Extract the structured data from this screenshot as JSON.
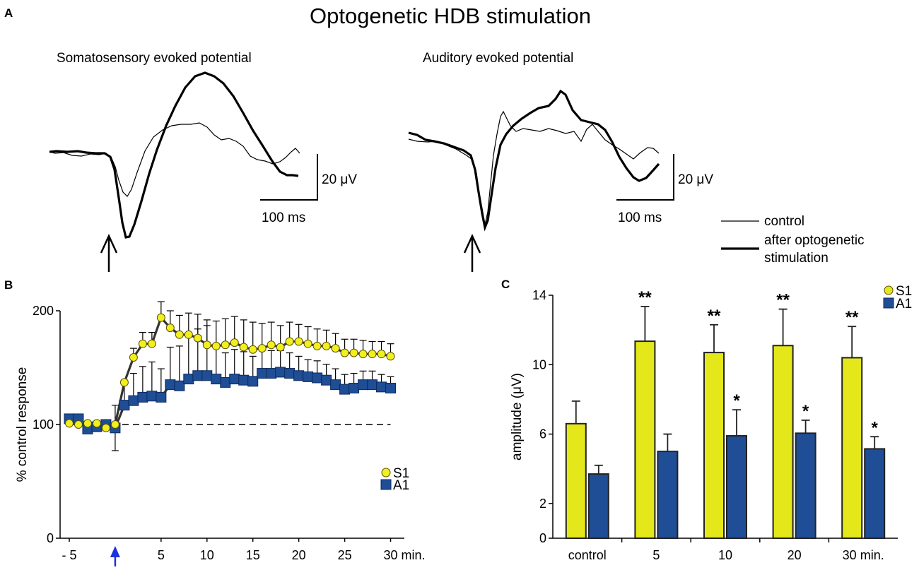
{
  "figure": {
    "title": "Optogenetic HDB stimulation",
    "panel_a": "A",
    "panel_b": "B",
    "panel_c": "C"
  },
  "panel_a": {
    "left_title": "Somatosensory evoked potential",
    "right_title": "Auditory evoked potential",
    "scale_amp": "20 μV",
    "scale_time": "100 ms",
    "legend_control": "control",
    "legend_after_line1": "after optogenetic",
    "legend_after_line2": "stimulation"
  },
  "chart_data": [
    {
      "type": "line",
      "panel": "B",
      "ylabel": "% control response",
      "ylim": [
        0,
        200
      ],
      "yticks": [
        "0",
        "100",
        "200"
      ],
      "xticks": [
        "- 5",
        "5",
        "10",
        "15",
        "20",
        "25",
        "30 min."
      ],
      "xlim": [
        -6,
        31.5
      ],
      "stimulation_marker_x": 0,
      "reference_line_y": 100,
      "legend": [
        "S1",
        "A1"
      ],
      "series": [
        {
          "name": "S1",
          "color": "#f2ef1e",
          "x": [
            -5,
            -4,
            -3,
            -2,
            -1,
            0,
            1,
            2,
            3,
            4,
            5,
            6,
            7,
            8,
            9,
            10,
            11,
            12,
            13,
            14,
            15,
            16,
            17,
            18,
            19,
            20,
            21,
            22,
            23,
            24,
            25,
            26,
            27,
            28,
            29,
            30
          ],
          "values": [
            101,
            100,
            101,
            101,
            97,
            100,
            137,
            159,
            171,
            171,
            194,
            185,
            179,
            179,
            176,
            170,
            169,
            170,
            172,
            168,
            166,
            167,
            170,
            168,
            173,
            173,
            171,
            169,
            169,
            167,
            163,
            163,
            162,
            162,
            162,
            160
          ],
          "error": [
            0,
            0,
            0,
            0,
            0,
            0,
            0,
            8,
            10,
            10,
            14,
            15,
            17,
            19,
            21,
            22,
            22,
            23,
            23,
            24,
            24,
            22,
            20,
            19,
            17,
            15,
            15,
            15,
            14,
            13,
            12,
            12,
            12,
            11,
            11,
            11
          ]
        },
        {
          "name": "A1",
          "color": "#1f4e96",
          "x": [
            -5,
            -4,
            -3,
            -2,
            -1,
            0,
            1,
            2,
            3,
            4,
            5,
            6,
            7,
            8,
            9,
            10,
            11,
            12,
            13,
            14,
            15,
            16,
            17,
            18,
            19,
            20,
            21,
            22,
            23,
            24,
            25,
            26,
            27,
            28,
            29,
            30
          ],
          "values": [
            105,
            105,
            96,
            98,
            100,
            97,
            117,
            121,
            124,
            125,
            124,
            135,
            134,
            140,
            143,
            143,
            140,
            137,
            140,
            139,
            138,
            145,
            145,
            146,
            145,
            143,
            142,
            141,
            139,
            135,
            131,
            132,
            135,
            135,
            133,
            132
          ],
          "error": [
            0,
            0,
            0,
            0,
            0,
            20,
            22,
            24,
            27,
            30,
            25,
            33,
            35,
            38,
            41,
            44,
            30,
            26,
            26,
            25,
            22,
            22,
            20,
            19,
            18,
            17,
            15,
            15,
            14,
            14,
            13,
            13,
            12,
            12,
            11,
            10
          ]
        }
      ]
    },
    {
      "type": "bar",
      "panel": "C",
      "ylabel": "amplitude (μV)",
      "ylim": [
        0,
        14
      ],
      "yticks": [
        "0",
        "2",
        "6",
        "10",
        "14"
      ],
      "categories": [
        "control",
        "5",
        "10",
        "20",
        "30 min."
      ],
      "legend": [
        "S1",
        "A1"
      ],
      "series": [
        {
          "name": "S1",
          "color": "#e4e71a",
          "values": [
            6.6,
            11.35,
            10.7,
            11.1,
            10.4
          ],
          "error": [
            1.3,
            2.0,
            1.6,
            2.1,
            1.8
          ],
          "significance": [
            "",
            "**",
            "**",
            "**",
            "**"
          ]
        },
        {
          "name": "A1",
          "color": "#1f4e96",
          "values": [
            3.7,
            5.0,
            5.9,
            6.05,
            5.15
          ],
          "error": [
            0.5,
            1.0,
            1.5,
            0.75,
            0.7
          ],
          "significance": [
            "",
            "",
            "*",
            "*",
            "*"
          ]
        }
      ]
    }
  ]
}
